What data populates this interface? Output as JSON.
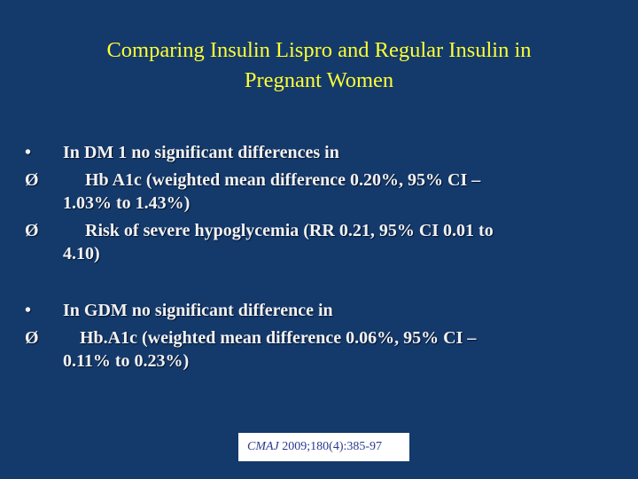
{
  "slide": {
    "title_line1": "Comparing Insulin Lispro and Regular Insulin in",
    "title_line2": "Pregnant Women",
    "bullet_glyph": "•",
    "arrow_glyph": "Ø",
    "dm1": {
      "heading": "In DM 1 no significant differences in",
      "item1_line1": "Hb A1c (weighted mean difference 0.20%, 95% CI –",
      "item1_line2": "1.03% to 1.43%)",
      "item2_line1": "Risk of severe hypoglycemia (RR  0.21, 95%   CI 0.01 to",
      "item2_line2": "4.10)"
    },
    "gdm": {
      "heading": "In GDM  no significant difference in",
      "item1_line1": "Hb.A1c (weighted mean difference 0.06%, 95% CI –",
      "item1_line2": "0.11% to 0.23%)"
    },
    "citation_cmaj": "CMAJ",
    "citation_ref": " 2009;180(4):385-97"
  }
}
